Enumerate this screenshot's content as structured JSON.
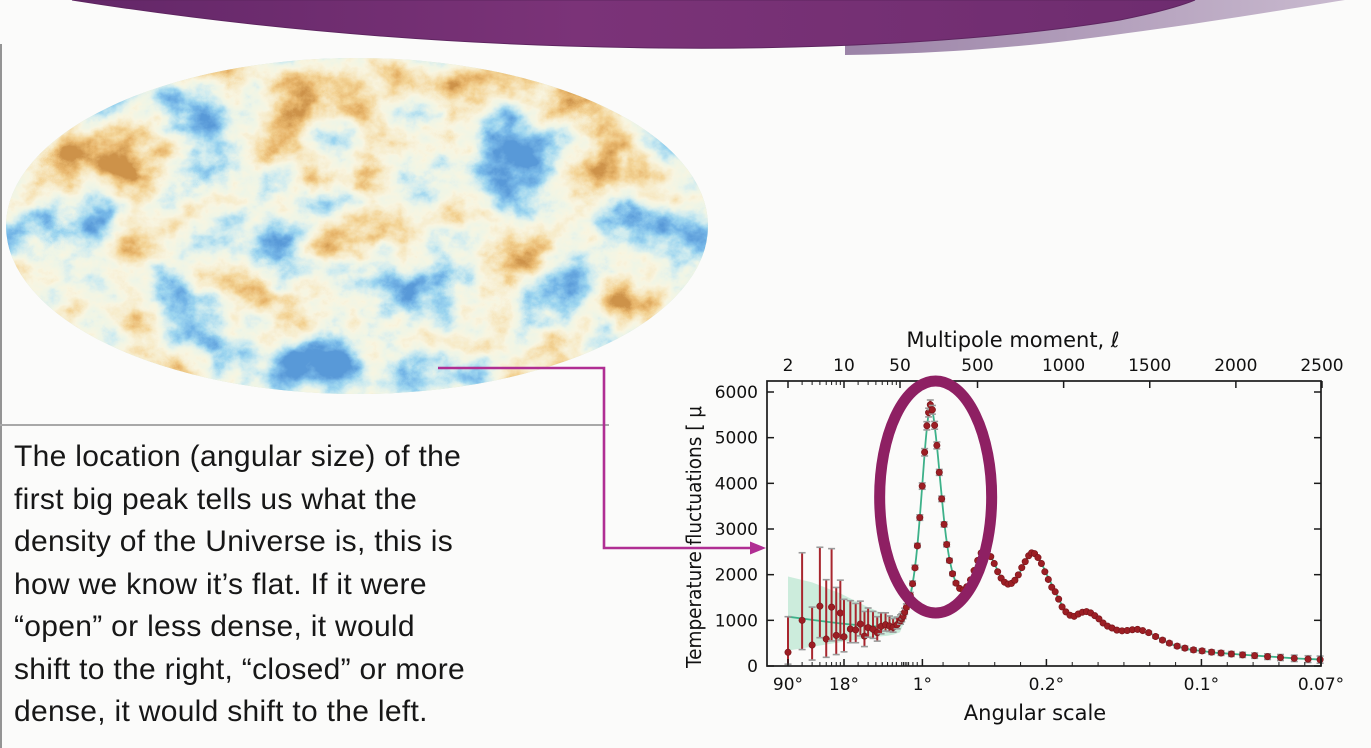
{
  "slide": {
    "type_label": "presentation-slide",
    "background": "#fbfbfa"
  },
  "colors": {
    "banner_dark": "#7b3378",
    "banner_dark_edge": "#5e2560",
    "banner_light": "#9b83a7",
    "banner_light_tip": "#c9bacf",
    "arrow": "#b02e93",
    "highlight_ellipse": "#8e2063",
    "curve": "#3db189",
    "band": "#c7ead8",
    "data_point": "#9c1e24",
    "error_bar": "#a8262e",
    "error_cap": "#9a9a9a",
    "axis": "#1a1a1a",
    "edge_lines": "#949494"
  },
  "cmb_map": {
    "description": "CMB temperature anisotropy sky map (elliptical Mollweide projection)",
    "palette": [
      "#1a52b0",
      "#2f79cc",
      "#57aadd",
      "#9ed3de",
      "#d9e8cd",
      "#efe7c0",
      "#ecd091",
      "#e5a84f",
      "#cf7726",
      "#9c4a12"
    ]
  },
  "body_text": {
    "text": "The location (angular size) of the\nfirst big peak tells us what the\ndensity of the Universe is, this is\nhow we know it’s flat. If it were\n“open” or less dense, it would\nshift to the right, “closed” or more\ndense, it would shift to the left."
  },
  "chart_labels": {
    "top_axis_title": "Multipole moment, ℓ",
    "bottom_axis_title": "Angular scale",
    "y_axis_title": "Temperature fluctuations [ μ"
  },
  "chart_data": {
    "type": "line",
    "title": "CMB temperature power spectrum",
    "xlabel": "Multipole moment, ℓ (top) / Angular scale (bottom)",
    "ylabel": "Temperature fluctuations [ μ",
    "x_scale": "logarithmic for ℓ ≤ 50, linear for ℓ ≥ 50",
    "x_range": [
      2,
      2500
    ],
    "y_range": [
      0,
      6250
    ],
    "grid": false,
    "legend": "none",
    "top_ticks": [
      2,
      10,
      50,
      500,
      1000,
      1500,
      2000,
      2500
    ],
    "top_minor_ticks": [
      3,
      4,
      5,
      6,
      7,
      8,
      9,
      15,
      20,
      25,
      30,
      35,
      40,
      45
    ],
    "y_ticks": [
      0,
      1000,
      2000,
      3000,
      4000,
      5000,
      6000
    ],
    "bottom_ticks": [
      {
        "label": "90°",
        "l": 2
      },
      {
        "label": "18°",
        "l": 10
      },
      {
        "label": "1°",
        "l": 180
      },
      {
        "label": "0.2°",
        "l": 900
      },
      {
        "label": "0.1°",
        "l": 1800
      },
      {
        "label": "0.07°",
        "l": 2500
      }
    ],
    "bottom_minor_ticks": [
      3,
      4,
      5,
      6,
      7,
      8,
      9,
      15,
      20,
      25,
      30,
      35,
      40,
      45,
      60,
      70,
      80,
      90,
      100,
      125,
      150,
      300,
      450,
      600,
      750,
      1050,
      1200,
      1350,
      1500,
      1650,
      1950,
      2100,
      2250,
      2400
    ],
    "theory_curve": [
      [
        2,
        1080
      ],
      [
        4,
        1010
      ],
      [
        7,
        955
      ],
      [
        10,
        925
      ],
      [
        14,
        900
      ],
      [
        18,
        882
      ],
      [
        22,
        872
      ],
      [
        27,
        866
      ],
      [
        32,
        868
      ],
      [
        38,
        882
      ],
      [
        44,
        910
      ],
      [
        50,
        950
      ],
      [
        58,
        1010
      ],
      [
        68,
        1090
      ],
      [
        80,
        1190
      ],
      [
        92,
        1310
      ],
      [
        105,
        1470
      ],
      [
        120,
        1730
      ],
      [
        135,
        2100
      ],
      [
        150,
        2600
      ],
      [
        165,
        3250
      ],
      [
        180,
        4000
      ],
      [
        195,
        4750
      ],
      [
        210,
        5350
      ],
      [
        220,
        5640
      ],
      [
        228,
        5700
      ],
      [
        238,
        5600
      ],
      [
        250,
        5300
      ],
      [
        265,
        4800
      ],
      [
        280,
        4200
      ],
      [
        295,
        3600
      ],
      [
        310,
        3050
      ],
      [
        325,
        2620
      ],
      [
        340,
        2290
      ],
      [
        360,
        1980
      ],
      [
        380,
        1790
      ],
      [
        400,
        1690
      ],
      [
        420,
        1670
      ],
      [
        440,
        1740
      ],
      [
        460,
        1890
      ],
      [
        480,
        2090
      ],
      [
        500,
        2300
      ],
      [
        520,
        2470
      ],
      [
        537,
        2550
      ],
      [
        555,
        2520
      ],
      [
        575,
        2410
      ],
      [
        600,
        2230
      ],
      [
        625,
        2020
      ],
      [
        650,
        1870
      ],
      [
        675,
        1790
      ],
      [
        700,
        1810
      ],
      [
        725,
        1910
      ],
      [
        750,
        2080
      ],
      [
        775,
        2270
      ],
      [
        800,
        2430
      ],
      [
        815,
        2480
      ],
      [
        830,
        2460
      ],
      [
        850,
        2380
      ],
      [
        875,
        2220
      ],
      [
        900,
        2020
      ],
      [
        925,
        1830
      ],
      [
        950,
        1640
      ],
      [
        975,
        1440
      ],
      [
        1000,
        1270
      ],
      [
        1030,
        1130
      ],
      [
        1060,
        1090
      ],
      [
        1090,
        1140
      ],
      [
        1130,
        1190
      ],
      [
        1160,
        1160
      ],
      [
        1200,
        1050
      ],
      [
        1240,
        920
      ],
      [
        1280,
        830
      ],
      [
        1320,
        780
      ],
      [
        1360,
        770
      ],
      [
        1400,
        790
      ],
      [
        1430,
        800
      ],
      [
        1460,
        780
      ],
      [
        1500,
        720
      ],
      [
        1550,
        620
      ],
      [
        1600,
        520
      ],
      [
        1650,
        440
      ],
      [
        1700,
        390
      ],
      [
        1750,
        350
      ],
      [
        1800,
        330
      ],
      [
        1860,
        300
      ],
      [
        1920,
        280
      ],
      [
        1980,
        265
      ],
      [
        2050,
        245
      ],
      [
        2120,
        225
      ],
      [
        2200,
        205
      ],
      [
        2280,
        185
      ],
      [
        2360,
        165
      ],
      [
        2440,
        150
      ],
      [
        2500,
        140
      ]
    ],
    "uncertainty_band": [
      [
        2,
        340,
        1960
      ],
      [
        4,
        420,
        1830
      ],
      [
        6,
        470,
        1710
      ],
      [
        9,
        520,
        1590
      ],
      [
        12,
        555,
        1480
      ],
      [
        16,
        590,
        1370
      ],
      [
        20,
        615,
        1290
      ],
      [
        25,
        635,
        1215
      ],
      [
        30,
        650,
        1150
      ],
      [
        36,
        665,
        1110
      ],
      [
        42,
        690,
        1092
      ],
      [
        50,
        740,
        1105
      ],
      [
        60,
        830,
        1160
      ],
      [
        72,
        940,
        1250
      ],
      [
        85,
        1060,
        1360
      ],
      [
        100,
        1230,
        1530
      ],
      [
        110,
        1400,
        1700
      ],
      [
        118,
        1560,
        1840
      ],
      [
        124,
        1700,
        1960
      ]
    ],
    "data_points": [
      [
        2,
        300,
        260,
        780
      ],
      [
        3,
        1000,
        640,
        1480
      ],
      [
        4,
        460,
        330,
        830
      ],
      [
        5,
        1310,
        690,
        1290
      ],
      [
        6,
        590,
        400,
        1300
      ],
      [
        7,
        1290,
        740,
        1280
      ],
      [
        8,
        670,
        420,
        1050
      ],
      [
        9,
        1160,
        590,
        720
      ],
      [
        10,
        640,
        330,
        820
      ],
      [
        12,
        810,
        300,
        620
      ],
      [
        14,
        790,
        280,
        580
      ],
      [
        16,
        920,
        260,
        500
      ],
      [
        18,
        655,
        230,
        540
      ],
      [
        20,
        840,
        210,
        430
      ],
      [
        23,
        805,
        200,
        390
      ],
      [
        26,
        730,
        185,
        350
      ],
      [
        29,
        866,
        160,
        300
      ],
      [
        33,
        905,
        140,
        260
      ],
      [
        37,
        875,
        120,
        220
      ],
      [
        41,
        846,
        105,
        195
      ],
      [
        46,
        905,
        90,
        165
      ],
      [
        53,
        990,
        75,
        130
      ],
      [
        60,
        1035,
        65,
        110
      ],
      [
        68,
        1090,
        55,
        95
      ],
      [
        77,
        1180,
        50,
        85
      ],
      [
        87,
        1285,
        45,
        75
      ],
      [
        98,
        1395,
        42,
        70
      ],
      [
        110,
        1545,
        40,
        65
      ],
      [
        123,
        1800,
        38,
        60
      ],
      [
        137,
        2150,
        36,
        58
      ],
      [
        151,
        2630,
        35,
        55
      ],
      [
        165,
        3250,
        60,
        60
      ],
      [
        179,
        3940,
        70,
        70
      ],
      [
        193,
        4680,
        80,
        80
      ],
      [
        206,
        5260,
        90,
        90
      ],
      [
        216,
        5550,
        95,
        95
      ],
      [
        226,
        5720,
        105,
        105
      ],
      [
        238,
        5610,
        95,
        95
      ],
      [
        251,
        5270,
        85,
        85
      ],
      [
        264,
        4830,
        75,
        75
      ],
      [
        278,
        4240,
        65,
        65
      ],
      [
        292,
        3660,
        60,
        60
      ],
      [
        306,
        3100,
        55,
        55
      ],
      [
        321,
        2660,
        50,
        50
      ],
      [
        337,
        2310,
        45,
        45
      ],
      [
        355,
        2020,
        40,
        40
      ],
      [
        375,
        1815,
        35,
        35
      ],
      [
        396,
        1700,
        30,
        30
      ],
      [
        417,
        1665,
        28,
        28
      ],
      [
        438,
        1735,
        26,
        26
      ],
      [
        459,
        1885,
        24,
        24
      ],
      [
        480,
        2090,
        24,
        24
      ],
      [
        501,
        2310,
        24,
        24
      ],
      [
        521,
        2475,
        24,
        24
      ],
      [
        539,
        2548,
        24,
        24
      ],
      [
        557,
        2515,
        24,
        24
      ],
      [
        577,
        2395,
        24,
        24
      ],
      [
        597,
        2245,
        24,
        24
      ],
      [
        617,
        2065,
        24,
        24
      ],
      [
        637,
        1925,
        24,
        24
      ],
      [
        657,
        1835,
        24,
        24
      ],
      [
        677,
        1792,
        24,
        24
      ],
      [
        697,
        1808,
        24,
        24
      ],
      [
        717,
        1878,
        24,
        24
      ],
      [
        737,
        1995,
        24,
        24
      ],
      [
        757,
        2155,
        24,
        24
      ],
      [
        777,
        2285,
        24,
        24
      ],
      [
        797,
        2415,
        24,
        24
      ],
      [
        814,
        2478,
        24,
        24
      ],
      [
        831,
        2462,
        24,
        24
      ],
      [
        851,
        2375,
        24,
        24
      ],
      [
        871,
        2245,
        24,
        24
      ],
      [
        891,
        2065,
        24,
        24
      ],
      [
        911,
        1895,
        24,
        24
      ],
      [
        931,
        1725,
        24,
        24
      ],
      [
        951,
        1625,
        24,
        24
      ],
      [
        971,
        1465,
        24,
        24
      ],
      [
        991,
        1295,
        24,
        24
      ],
      [
        1013,
        1185,
        24,
        24
      ],
      [
        1037,
        1112,
        24,
        24
      ],
      [
        1061,
        1088,
        24,
        24
      ],
      [
        1085,
        1138,
        24,
        24
      ],
      [
        1109,
        1178,
        24,
        24
      ],
      [
        1133,
        1192,
        24,
        24
      ],
      [
        1157,
        1162,
        24,
        24
      ],
      [
        1181,
        1102,
        24,
        24
      ],
      [
        1205,
        1032,
        24,
        24
      ],
      [
        1229,
        942,
        26,
        26
      ],
      [
        1255,
        872,
        26,
        26
      ],
      [
        1281,
        832,
        26,
        26
      ],
      [
        1309,
        786,
        28,
        28
      ],
      [
        1339,
        770,
        28,
        28
      ],
      [
        1369,
        778,
        30,
        30
      ],
      [
        1399,
        794,
        30,
        30
      ],
      [
        1429,
        802,
        32,
        32
      ],
      [
        1459,
        776,
        32,
        32
      ],
      [
        1494,
        730,
        34,
        34
      ],
      [
        1534,
        646,
        36,
        36
      ],
      [
        1574,
        566,
        38,
        38
      ],
      [
        1614,
        500,
        40,
        40
      ],
      [
        1659,
        436,
        42,
        42
      ],
      [
        1704,
        392,
        44,
        44
      ],
      [
        1754,
        352,
        46,
        46
      ],
      [
        1804,
        330,
        48,
        48
      ],
      [
        1859,
        303,
        50,
        50
      ],
      [
        1914,
        284,
        52,
        52
      ],
      [
        1974,
        263,
        54,
        54
      ],
      [
        2039,
        244,
        56,
        56
      ],
      [
        2109,
        226,
        58,
        58
      ],
      [
        2184,
        205,
        62,
        62
      ],
      [
        2259,
        186,
        66,
        66
      ],
      [
        2339,
        168,
        70,
        70
      ],
      [
        2419,
        151,
        74,
        74
      ],
      [
        2489,
        139,
        78,
        78
      ]
    ],
    "annotation": {
      "ellipse_highlight": {
        "meaning": "first acoustic peak circled",
        "l_center": 228,
        "v_center": 3700
      },
      "connector_arrow": "elbow arrow from CMB map to the power spectrum plot"
    }
  }
}
